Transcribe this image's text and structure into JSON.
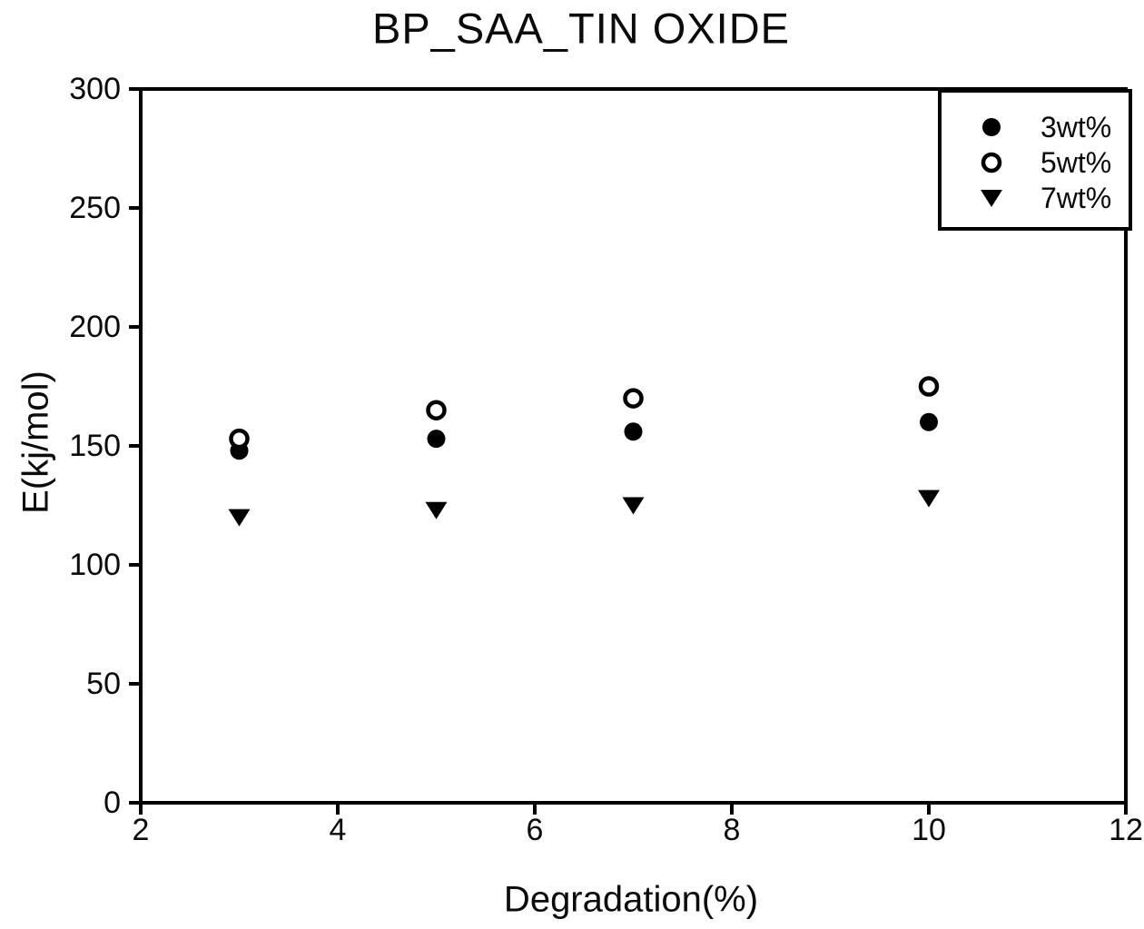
{
  "chart_data": {
    "type": "scatter",
    "title": "BP_SAA_TIN OXIDE",
    "xlabel": "Degradation(%)",
    "ylabel": "E(kj/mol)",
    "x": [
      3,
      5,
      7,
      10
    ],
    "series": [
      {
        "name": "3wt%",
        "marker": "filled-circle",
        "values": [
          148,
          153,
          156,
          160
        ]
      },
      {
        "name": "5wt%",
        "marker": "open-circle",
        "values": [
          153,
          165,
          170,
          175
        ]
      },
      {
        "name": "7wt%",
        "marker": "filled-triangle-down",
        "values": [
          120,
          123,
          125,
          128
        ]
      }
    ],
    "xlim": [
      2,
      12
    ],
    "ylim": [
      0,
      300
    ],
    "xticks": [
      "2",
      "4",
      "6",
      "8",
      "10",
      "12"
    ],
    "yticks": [
      "0",
      "50",
      "100",
      "150",
      "200",
      "250",
      "300"
    ],
    "grid": false,
    "legend_position": "top-right",
    "colors": {
      "foreground": "#000000",
      "background": "#ffffff"
    }
  }
}
